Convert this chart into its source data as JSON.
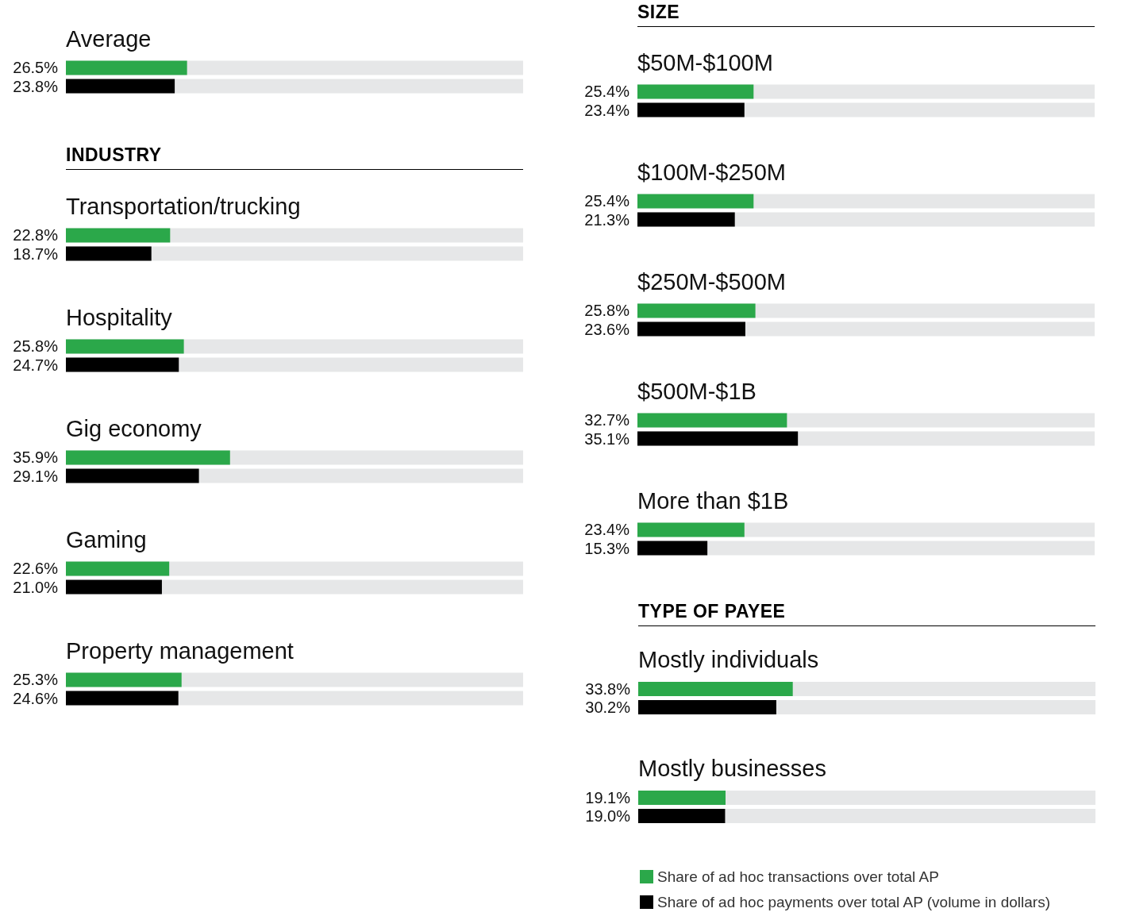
{
  "chart_data": [
    {
      "type": "bar",
      "orientation": "horizontal",
      "categories": [
        "Average"
      ],
      "xlim": [
        0,
        100
      ],
      "tick_labels": "y",
      "legend": false,
      "series": [
        {
          "color": "#2ba84a",
          "values": [
            26.5
          ],
          "value_labels": [
            "26.5%"
          ]
        },
        {
          "color": "#000000",
          "values": [
            23.8
          ],
          "value_labels": [
            "23.8%"
          ]
        }
      ]
    },
    {
      "type": "bar",
      "orientation": "horizontal",
      "title": "INDUSTRY",
      "categories": [
        "Transportation/trucking",
        "Hospitality",
        "Gig economy",
        "Gaming",
        "Property management"
      ],
      "xlim": [
        0,
        100
      ],
      "tick_labels": "y",
      "legend": false,
      "series": [
        {
          "color": "#2ba84a",
          "values": [
            22.8,
            25.8,
            35.9,
            22.6,
            25.3
          ],
          "value_labels": [
            "22.8%",
            "25.8%",
            "35.9%",
            "22.6%",
            "25.3%"
          ]
        },
        {
          "color": "#000000",
          "values": [
            18.7,
            24.7,
            29.1,
            21.0,
            24.6
          ],
          "value_labels": [
            "18.7%",
            "24.7%",
            "29.1%",
            "21.0%",
            "24.6%"
          ]
        }
      ]
    },
    {
      "type": "bar",
      "orientation": "horizontal",
      "title": "SIZE",
      "categories": [
        "$50M-$100M",
        "$100M-$250M",
        "$250M-$500M",
        "$500M-$1B",
        "More than $1B"
      ],
      "xlim": [
        0,
        100
      ],
      "tick_labels": "y",
      "legend": false,
      "series": [
        {
          "color": "#2ba84a",
          "values": [
            25.4,
            25.4,
            25.8,
            32.7,
            23.4
          ],
          "value_labels": [
            "25.4%",
            "25.4%",
            "25.8%",
            "32.7%",
            "23.4%"
          ]
        },
        {
          "color": "#000000",
          "values": [
            23.4,
            21.3,
            23.6,
            35.1,
            15.3
          ],
          "value_labels": [
            "23.4%",
            "21.3%",
            "23.6%",
            "35.1%",
            "15.3%"
          ]
        }
      ]
    },
    {
      "type": "bar",
      "orientation": "horizontal",
      "title": "TYPE OF PAYEE",
      "categories": [
        "Mostly individuals",
        "Mostly businesses"
      ],
      "xlim": [
        0,
        100
      ],
      "tick_labels": "y",
      "legend": "bottom",
      "series": [
        {
          "name": "Share of ad hoc transactions over total AP",
          "color": "#2ba84a",
          "values": [
            33.8,
            19.1
          ],
          "value_labels": [
            "33.8%",
            "19.1%"
          ]
        },
        {
          "name": "Share of ad hoc payments over total AP (volume in dollars)",
          "color": "#000000",
          "values": [
            30.2,
            19.0
          ],
          "value_labels": [
            "30.2%",
            "19.0%"
          ]
        }
      ]
    }
  ]
}
